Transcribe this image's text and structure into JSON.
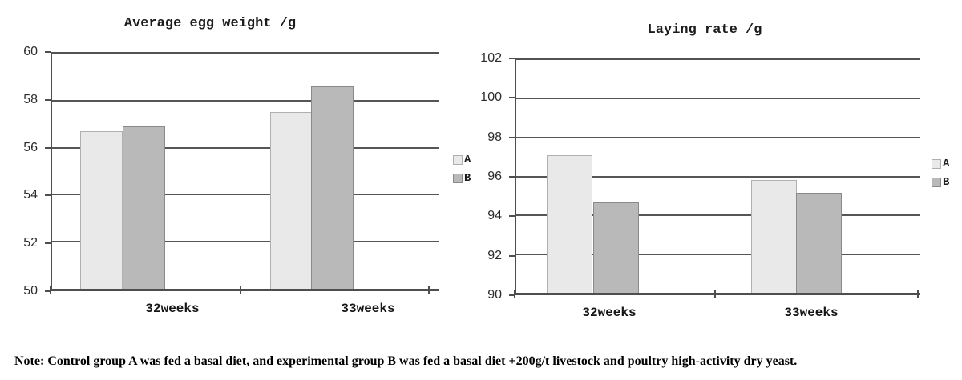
{
  "note": "Note: Control group A was fed a basal diet, and experimental group B was fed a basal diet +200g/t livestock and poultry high-activity dry yeast.",
  "colors": {
    "series_a_fill": "#e9e9e9",
    "series_a_border": "#b0b0b0",
    "series_b_fill": "#b9b9b9",
    "series_b_border": "#8a8a8a",
    "gridline": "#565656",
    "axis": "#4e4e4e",
    "text": "#1c1c1c"
  },
  "chart_data": [
    {
      "type": "bar",
      "title": "Average egg weight /g",
      "categories": [
        "32weeks",
        "33weeks"
      ],
      "series": [
        {
          "name": "A",
          "values": [
            56.7,
            57.5
          ]
        },
        {
          "name": "B",
          "values": [
            56.9,
            58.55
          ]
        }
      ],
      "ylim": [
        50,
        60
      ],
      "yticks": [
        50,
        52,
        54,
        56,
        58,
        60
      ],
      "grid": true,
      "legend_position": "right"
    },
    {
      "type": "bar",
      "title": "Laying rate /g",
      "categories": [
        "32weeks",
        "33weeks"
      ],
      "series": [
        {
          "name": "A",
          "values": [
            97.1,
            95.85
          ]
        },
        {
          "name": "B",
          "values": [
            94.7,
            95.2
          ]
        }
      ],
      "ylim": [
        90,
        102
      ],
      "yticks": [
        90,
        92,
        94,
        96,
        98,
        100,
        102
      ],
      "grid": true,
      "legend_position": "right"
    }
  ]
}
